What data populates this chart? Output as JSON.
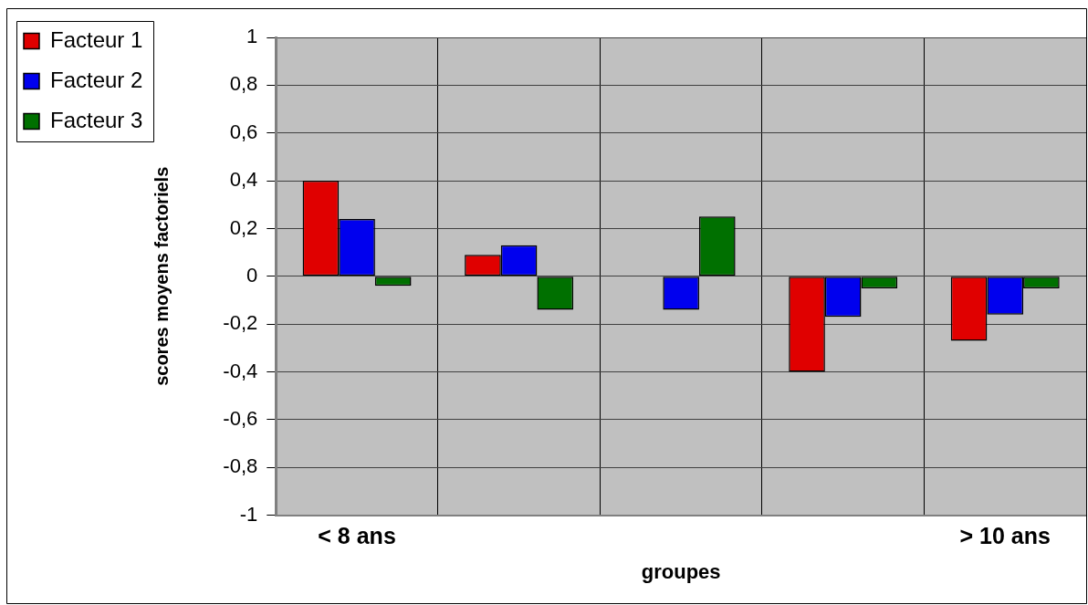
{
  "chart_data": {
    "type": "bar",
    "categories": [
      "< 8 ans",
      null,
      null,
      null,
      "> 10 ans"
    ],
    "series": [
      {
        "name": "Facteur 1",
        "color": "#e00000",
        "values": [
          0.4,
          0.09,
          null,
          -0.4,
          -0.27
        ]
      },
      {
        "name": "Facteur 2",
        "color": "#0000ee",
        "values": [
          0.24,
          0.13,
          -0.14,
          -0.17,
          -0.16
        ]
      },
      {
        "name": "Facteur 3",
        "color": "#007000",
        "values": [
          -0.04,
          -0.14,
          0.25,
          -0.05,
          -0.05
        ]
      }
    ],
    "xlabel": "groupes",
    "ylabel": "scores moyens factoriels",
    "ylim": [
      -1,
      1
    ],
    "yticks": [
      -1,
      {
        "value": -0.8,
        "label": "-0,8"
      },
      {
        "value": -0.6,
        "label": "-0,6"
      },
      {
        "value": -0.4,
        "label": "-0,4"
      },
      {
        "value": -0.2,
        "label": "-0,2"
      },
      0,
      {
        "value": 0.2,
        "label": "0,2"
      },
      {
        "value": 0.4,
        "label": "0,4"
      },
      {
        "value": 0.6,
        "label": "0,6"
      },
      {
        "value": 0.8,
        "label": "0,8"
      },
      1
    ],
    "grid": true,
    "legend": "top left"
  }
}
